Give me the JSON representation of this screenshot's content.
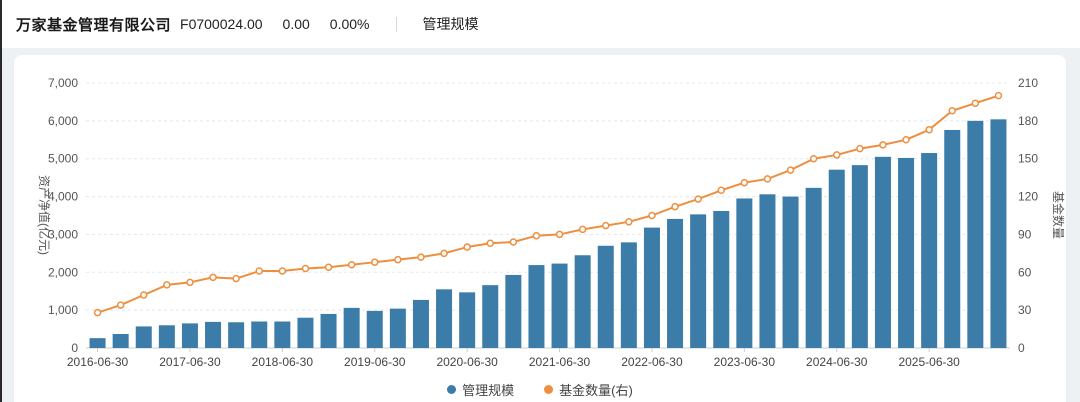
{
  "header": {
    "company": "万家基金管理有限公司",
    "code": "F0700024.00",
    "nav": "0.00",
    "nav_change": "0.00%",
    "tab": "管理规模"
  },
  "colors": {
    "bar": "#3b7ca8",
    "line": "#ee8f3f",
    "grid": "#e4e8ee",
    "axis_line": "#cccccc",
    "tick_text": "#555555",
    "page_bg": "#eef1f4",
    "card_bg": "#ffffff"
  },
  "chart_data": {
    "type": "bar+line",
    "categories": [
      "2016-06-30",
      "2016-09-30",
      "2016-12-31",
      "2017-03-31",
      "2017-06-30",
      "2017-09-30",
      "2017-12-31",
      "2018-03-31",
      "2018-06-30",
      "2018-09-30",
      "2018-12-31",
      "2019-03-31",
      "2019-06-30",
      "2019-09-30",
      "2019-12-31",
      "2020-03-31",
      "2020-06-30",
      "2020-09-30",
      "2020-12-31",
      "2021-03-31",
      "2021-06-30",
      "2021-09-30",
      "2021-12-31",
      "2022-03-31",
      "2022-06-30",
      "2022-09-30",
      "2022-12-31",
      "2023-03-31",
      "2023-06-30",
      "2023-09-30",
      "2023-12-31",
      "2024-03-31",
      "2024-06-30",
      "2024-09-30",
      "2024-12-31",
      "2025-03-31",
      "2025-06-30",
      "2025-09-30",
      "2025-12-31",
      "2026-03-31"
    ],
    "x_tick_labels": [
      "2016-06-30",
      "2017-06-30",
      "2018-06-30",
      "2019-06-30",
      "2020-06-30",
      "2021-06-30",
      "2022-06-30",
      "2023-06-30",
      "2024-06-30",
      "2025-06-30"
    ],
    "x_label_interval": 4,
    "series": [
      {
        "name": "管理规模",
        "type": "bar",
        "axis": "left",
        "color": "#3b7ca8",
        "values": [
          260,
          370,
          570,
          600,
          650,
          690,
          680,
          700,
          700,
          800,
          900,
          1060,
          980,
          1040,
          1270,
          1550,
          1470,
          1660,
          1930,
          2190,
          2230,
          2450,
          2700,
          2790,
          3180,
          3410,
          3530,
          3620,
          3950,
          4060,
          4000,
          4230,
          4710,
          4830,
          5050,
          5020,
          5150,
          5760,
          6000,
          6040
        ]
      },
      {
        "name": "基金数量(右)",
        "type": "line",
        "axis": "right",
        "color": "#ee8f3f",
        "values": [
          28,
          34,
          42,
          50,
          52,
          56,
          55,
          61,
          61,
          63,
          64,
          66,
          68,
          70,
          72,
          75,
          80,
          83,
          84,
          89,
          90,
          94,
          97,
          100,
          105,
          112,
          118,
          125,
          131,
          134,
          141,
          150,
          153,
          158,
          161,
          165,
          173,
          188,
          194,
          200
        ]
      }
    ],
    "left_axis": {
      "title": "资产净值(亿元)",
      "min": 0,
      "max": 7000,
      "step": 1000,
      "tick_labels": [
        "0",
        "1,000",
        "2,000",
        "3,000",
        "4,000",
        "5,000",
        "6,000",
        "7,000"
      ]
    },
    "right_axis": {
      "title": "基金数量",
      "min": 0,
      "max": 210,
      "step": 30,
      "tick_labels": [
        "0",
        "30",
        "60",
        "90",
        "120",
        "150",
        "180",
        "210"
      ]
    },
    "legend": [
      "管理规模",
      "基金数量(右)"
    ],
    "grid": "horizontal-dashed",
    "legend_position": "bottom-center"
  }
}
